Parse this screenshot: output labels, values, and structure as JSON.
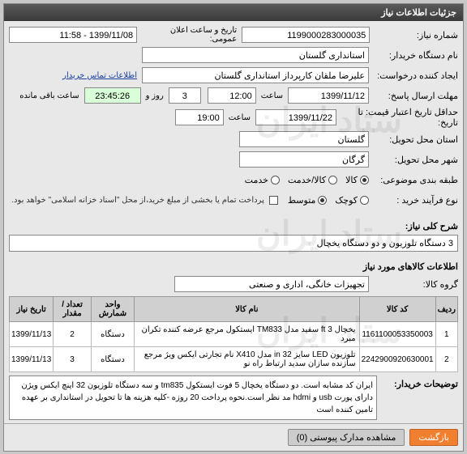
{
  "header": {
    "title": "جزئیات اطلاعات نیاز"
  },
  "form": {
    "need_no_label": "شماره نیاز:",
    "need_no": "1199000283000035",
    "announce_label": "تاریخ و ساعت اعلان عمومی:",
    "announce_value": "1399/11/08 - 11:58",
    "buyer_name_label": "نام دستگاه خریدار:",
    "buyer_name": "استانداری گلستان",
    "requester_label": "ایجاد کننده درخواست:",
    "requester": "علیرضا ملقان کارپرداز استانداری گلستان",
    "requester_link": "اطلاعات تماس خریدار",
    "deadline_label": "مهلت ارسال پاسخ:",
    "deadline_date": "1399/11/12",
    "hour_label": "ساعت",
    "deadline_hour": "12:00",
    "day_count": "3",
    "day_label": "روز و",
    "countdown": "23:45:26",
    "countdown_label": "ساعت باقی مانده",
    "min_valid_label": "حداقل تاریخ اعتبار قیمت: تا تاریخ:",
    "min_valid_date": "1399/11/22",
    "min_valid_hour": "19:00",
    "delivery_prov_label": "استان محل تحویل:",
    "delivery_prov": "گلستان",
    "delivery_city_label": "شهر محل تحویل:",
    "delivery_city": "گرگان",
    "type_label": "طبقه بندی موضوعی:",
    "type_goods": "کالا",
    "type_service": "کالا/خدمت",
    "type_serv": "خدمت",
    "purchase_label": "نوع فرآیند خرید :",
    "purchase_small": "کوچک",
    "purchase_med": "متوسط",
    "pay_note": "پرداخت تمام یا بخشی از مبلغ خرید،از محل \"اسناد خزانه اسلامی\" خواهد بود."
  },
  "summary": {
    "label": "شرح کلی نیاز:",
    "text": "3 دستگاه تلوزیون و دو دستگاه یخچال"
  },
  "items_section": {
    "title": "اطلاعات کالاهای مورد نیاز",
    "group_label": "گروه کالا:",
    "group_value": "تجهیزات خانگی، اداری و صنعتی"
  },
  "table": {
    "headers": [
      "ردیف",
      "کد کالا",
      "نام کالا",
      "واحد شمارش",
      "تعداد / مقدار",
      "تاریخ نیاز"
    ],
    "rows": [
      [
        "1",
        "1161100053350003",
        "یخچال ft 3 سفید مدل TM833 ایستکول مرجع عرضه کننده تکران مبرد",
        "دستگاه",
        "2",
        "1399/11/13"
      ],
      [
        "2",
        "2242900920630001",
        "تلوزیون LED سایز in 32 مدل X410 نام تجارتی ایکس ویژ مرجع سازنده سازان سدید ارتباط راه نو",
        "دستگاه",
        "3",
        "1399/11/13"
      ]
    ]
  },
  "buyer_desc": {
    "label": "توضیحات خریدار:",
    "text": "ایران کد مشابه است. دو دستگاه یخچال 5 فوت ایستکول tm835 و سه دستگاه تلوزیون 32 اینچ ایکس ویژن دارای پورت usb و hdmi مد نظر است.نحوه پرداخت 20 روزه -کلیه هزینه ها تا تحویل در استانداری بر عهده تامین کننده است"
  },
  "buttons": {
    "back": "بازگشت",
    "attachments": "مشاهده مدارک پیوستی (0)"
  },
  "colors": {
    "header_bg": "#444",
    "panel_bg": "#e8e8e8",
    "countdown_bg": "#d8ffd8",
    "btn_primary": "#f08030"
  }
}
